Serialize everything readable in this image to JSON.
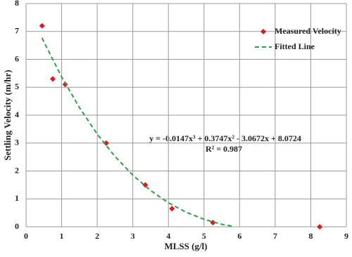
{
  "chart_data": {
    "type": "scatter",
    "x_label": "MLSS (g/l)",
    "y_label": "Settling Velocity (m/hr)",
    "xlim": [
      0,
      9
    ],
    "xticks": [
      0,
      1,
      2,
      3,
      4,
      5,
      6,
      7,
      8,
      9
    ],
    "ylim": [
      0,
      8
    ],
    "yticks": [
      0,
      1,
      2,
      3,
      4,
      5,
      6,
      7,
      8
    ],
    "grid": true,
    "legend": "upper right",
    "series": [
      {
        "name": "Measured Velocity",
        "color": "#e8141c",
        "marker": "diamond",
        "x": [
          0.45,
          0.75,
          1.1,
          2.25,
          3.35,
          4.1,
          5.25,
          8.25
        ],
        "values": [
          7.2,
          5.3,
          5.1,
          3.0,
          1.5,
          0.65,
          0.15,
          0.0
        ]
      },
      {
        "name": "Fitted Line",
        "color": "#2ea043",
        "line": "dashed",
        "x": [
          0.45,
          0.5,
          1,
          1.5,
          2,
          2.5,
          3,
          3.5,
          4,
          4.5,
          5,
          5.5,
          5.8
        ],
        "values": [
          6.77,
          6.63,
          5.37,
          4.27,
          3.32,
          2.52,
          1.85,
          1.3,
          0.86,
          0.52,
          0.27,
          0.09,
          0.02
        ]
      }
    ],
    "annotations": [
      "y = -0.0147x³ + 0.3747x² - 3.0672x + 8.0724",
      "R² = 0.987"
    ]
  }
}
